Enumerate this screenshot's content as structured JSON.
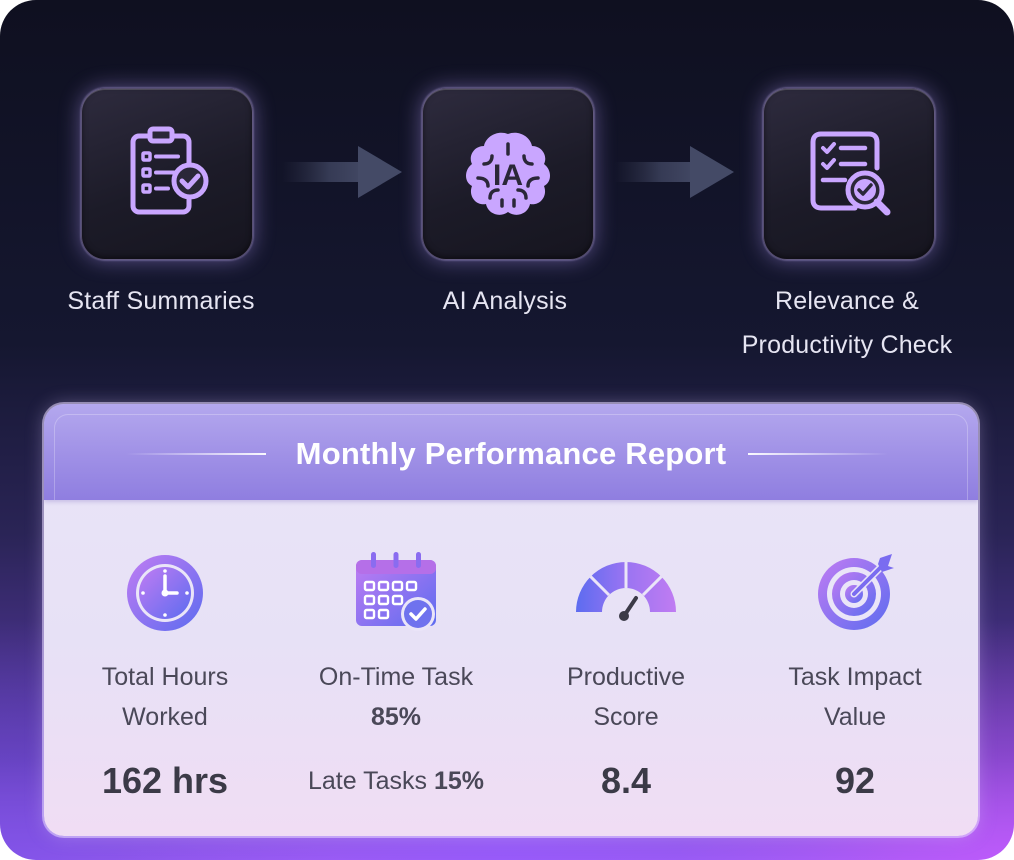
{
  "steps": [
    {
      "label": "Staff Summaries",
      "icon": "clipboard-check-icon"
    },
    {
      "label": "AI Analysis",
      "icon": "brain-icon",
      "icon_text": "IA"
    },
    {
      "label_line1": "Relevance &",
      "label_line2": "Productivity Check",
      "icon": "checklist-search-icon"
    }
  ],
  "report": {
    "title": "Monthly Performance Report",
    "metrics": [
      {
        "icon": "clock-icon",
        "label_line1": "Total Hours",
        "label_line2": "Worked",
        "value": "162 hrs"
      },
      {
        "icon": "calendar-check-icon",
        "label_line1": "On-Time Task",
        "label_line2": "85%",
        "value_prefix": "Late Tasks",
        "value_suffix": "15%"
      },
      {
        "icon": "gauge-icon",
        "label_line1": "Productive",
        "label_line2": "Score",
        "value": "8.4"
      },
      {
        "icon": "target-icon",
        "label_line1": "Task Impact",
        "label_line2": "Value",
        "value": "92"
      }
    ]
  },
  "colors": {
    "accent_purple": "#a77cf5",
    "accent_blue": "#6f72ee",
    "icon_lavender": "#c9a6ff"
  }
}
